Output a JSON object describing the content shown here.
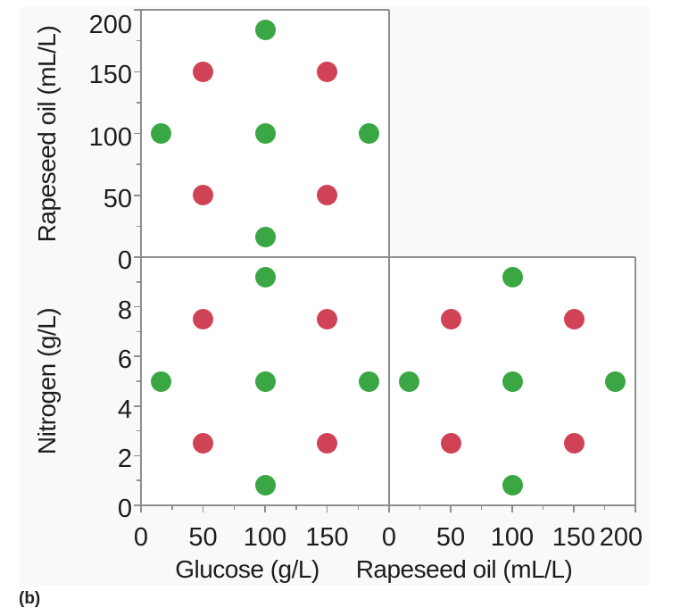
{
  "figure": {
    "caption_fragment": "(b)",
    "colors": {
      "figure_background": "#f8f9f8",
      "panel_background": "#ffffff",
      "panel_border": "#8d8f8e",
      "tick_label_color": "#1d1d1d",
      "red_point": "#D04357",
      "green_point": "#3AA644"
    }
  },
  "chart_data": [
    {
      "type": "scatter",
      "panel": "top-left",
      "xlabel": "Glucose (g/L)",
      "ylabel": "Rapeseed oil (mL/L)",
      "xlim": [
        0,
        200
      ],
      "ylim": [
        0,
        200
      ],
      "grid": false,
      "legend": "none",
      "y_axis": {
        "side": "left",
        "major": [
          [
            0,
            "0"
          ],
          [
            50,
            "50"
          ],
          [
            100,
            "100"
          ],
          [
            150,
            "150"
          ],
          [
            200,
            "200"
          ]
        ],
        "minor": [
          25,
          75,
          125,
          175
        ]
      },
      "x_axis": null,
      "series": [
        {
          "color_name": "red",
          "color": "#D04357",
          "points": [
            [
              50,
              50
            ],
            [
              50,
              150
            ],
            [
              150,
              50
            ],
            [
              150,
              150
            ]
          ]
        },
        {
          "color_name": "green",
          "color": "#3AA644",
          "points": [
            [
              16,
              100
            ],
            [
              100,
              16
            ],
            [
              100,
              100
            ],
            [
              100,
              184
            ],
            [
              184,
              100
            ]
          ]
        }
      ]
    },
    {
      "type": "scatter",
      "panel": "bottom-left",
      "xlabel": "Glucose (g/L)",
      "ylabel": "Nitrogen (g/L)",
      "xlim": [
        0,
        200
      ],
      "ylim": [
        0,
        10
      ],
      "grid": false,
      "legend": "none",
      "y_axis": {
        "side": "left",
        "major": [
          [
            0,
            "0"
          ],
          [
            2,
            "2"
          ],
          [
            4,
            "4"
          ],
          [
            6,
            "6"
          ],
          [
            8,
            "8"
          ]
        ],
        "minor": [
          1,
          3,
          5,
          7,
          9
        ]
      },
      "x_axis": {
        "side": "bottom",
        "major": [
          [
            0,
            "0"
          ],
          [
            50,
            "50"
          ],
          [
            100,
            "100"
          ],
          [
            150,
            "150"
          ]
        ],
        "minor": [
          25,
          75,
          125,
          175
        ]
      },
      "series": [
        {
          "color_name": "red",
          "color": "#D04357",
          "points": [
            [
              50,
              2.5
            ],
            [
              50,
              7.5
            ],
            [
              150,
              2.5
            ],
            [
              150,
              7.5
            ]
          ]
        },
        {
          "color_name": "green",
          "color": "#3AA644",
          "points": [
            [
              16,
              5
            ],
            [
              100,
              0.8
            ],
            [
              100,
              5
            ],
            [
              100,
              9.2
            ],
            [
              184,
              5
            ]
          ]
        }
      ]
    },
    {
      "type": "scatter",
      "panel": "bottom-right",
      "xlabel": "Rapeseed oil (mL/L)",
      "ylabel": "Nitrogen (g/L)",
      "xlim": [
        0,
        200
      ],
      "ylim": [
        0,
        10
      ],
      "grid": false,
      "legend": "none",
      "y_axis": null,
      "x_axis": {
        "side": "bottom",
        "major": [
          [
            0,
            "0"
          ],
          [
            50,
            "50"
          ],
          [
            100,
            "100"
          ],
          [
            150,
            "150"
          ],
          [
            200,
            "200"
          ]
        ],
        "minor": [
          25,
          75,
          125,
          175
        ]
      },
      "series": [
        {
          "color_name": "red",
          "color": "#D04357",
          "points": [
            [
              50,
              2.5
            ],
            [
              50,
              7.5
            ],
            [
              150,
              2.5
            ],
            [
              150,
              7.5
            ]
          ]
        },
        {
          "color_name": "green",
          "color": "#3AA644",
          "points": [
            [
              16,
              5
            ],
            [
              100,
              0.8
            ],
            [
              100,
              5
            ],
            [
              100,
              9.2
            ],
            [
              184,
              5
            ]
          ]
        }
      ]
    }
  ]
}
